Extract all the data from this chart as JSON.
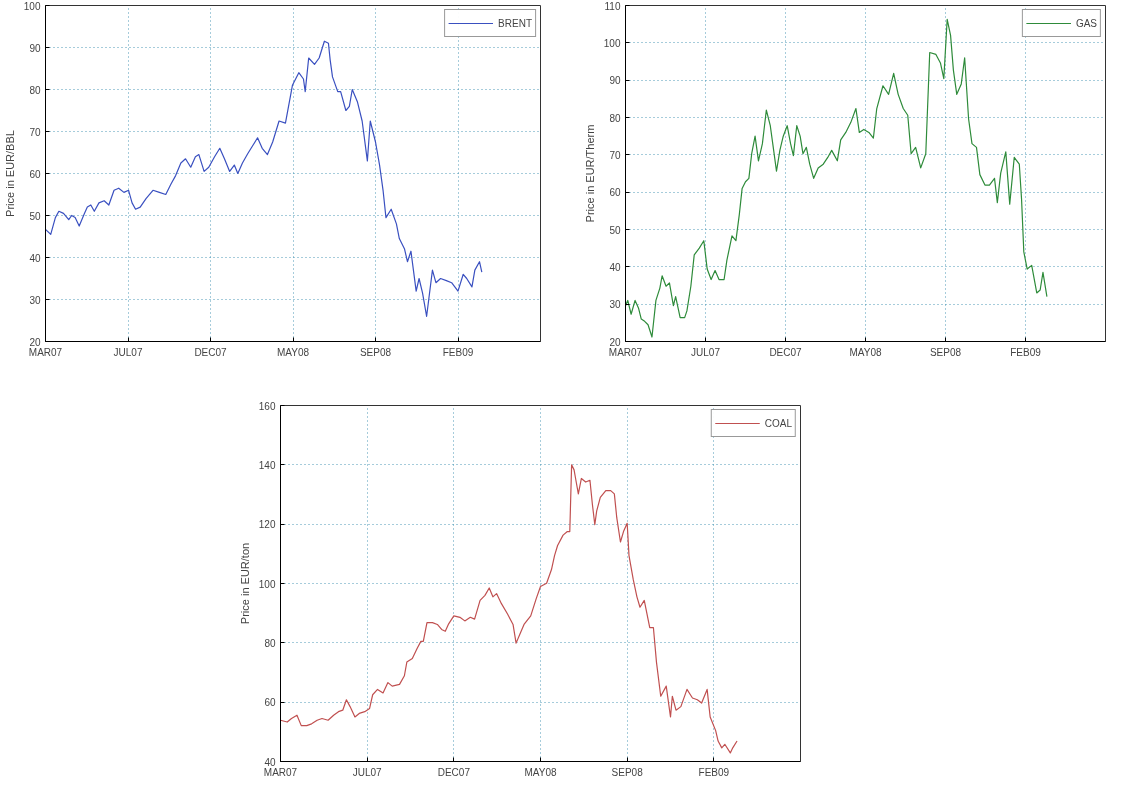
{
  "chart_data": [
    {
      "type": "line",
      "ylabel": "Price in EUR/BBL",
      "xlim": [
        "2007-03-10",
        "2009-07-09"
      ],
      "ylim": [
        20,
        100
      ],
      "grid": true,
      "legend": "top right",
      "xticks": [
        {
          "value": "2007-03-10",
          "label": "MAR07"
        },
        {
          "value": "2007-07-30",
          "label": "JUL07"
        },
        {
          "value": "2007-12-19",
          "label": "DEC07"
        },
        {
          "value": "2008-05-09",
          "label": "MAY08"
        },
        {
          "value": "2008-09-28",
          "label": "SEP08"
        },
        {
          "value": "2009-02-17",
          "label": "FEB09"
        }
      ],
      "yticks": [
        20,
        30,
        40,
        50,
        60,
        70,
        80,
        90,
        100
      ],
      "x": [
        "2007-03-10",
        "2007-03-19",
        "2007-03-27",
        "2007-04-02",
        "2007-04-10",
        "2007-04-19",
        "2007-04-24",
        "2007-04-30",
        "2007-05-07",
        "2007-05-16",
        "2007-05-21",
        "2007-05-27",
        "2007-06-02",
        "2007-06-10",
        "2007-06-19",
        "2007-06-27",
        "2007-07-06",
        "2007-07-14",
        "2007-07-23",
        "2007-07-31",
        "2007-08-06",
        "2007-08-12",
        "2007-08-20",
        "2007-08-30",
        "2007-09-11",
        "2007-09-22",
        "2007-10-03",
        "2007-10-12",
        "2007-10-20",
        "2007-10-29",
        "2007-11-06",
        "2007-11-15",
        "2007-11-23",
        "2007-11-29",
        "2007-12-08",
        "2007-12-16",
        "2007-12-26",
        "2008-01-04",
        "2008-01-12",
        "2008-01-21",
        "2008-01-29",
        "2008-02-04",
        "2008-02-12",
        "2008-02-21",
        "2008-02-29",
        "2008-03-09",
        "2008-03-17",
        "2008-03-26",
        "2008-04-04",
        "2008-04-15",
        "2008-04-26",
        "2008-05-08",
        "2008-05-19",
        "2008-05-27",
        "2008-05-30",
        "2008-06-05",
        "2008-06-15",
        "2008-06-23",
        "2008-07-02",
        "2008-07-09",
        "2008-07-12",
        "2008-07-16",
        "2008-07-25",
        "2008-07-30",
        "2008-08-08",
        "2008-08-14",
        "2008-08-19",
        "2008-08-28",
        "2008-09-05",
        "2008-09-14",
        "2008-09-19",
        "2008-09-28",
        "2008-10-05",
        "2008-10-11",
        "2008-10-16",
        "2008-10-25",
        "2008-11-03",
        "2008-11-08",
        "2008-11-17",
        "2008-11-22",
        "2008-11-28",
        "2008-12-07",
        "2008-12-12",
        "2008-12-18",
        "2008-12-25",
        "2009-01-04",
        "2009-01-10",
        "2009-01-18",
        "2009-01-28",
        "2009-02-06",
        "2009-02-17",
        "2009-02-26",
        "2009-03-04",
        "2009-03-13",
        "2009-03-18",
        "2009-03-26",
        "2009-03-30"
      ],
      "series": [
        {
          "name": "BRENT",
          "color": "#3a50c0",
          "values": [
            46.7,
            45.5,
            49.5,
            51,
            50.5,
            49,
            50,
            49.5,
            47.5,
            50.5,
            52,
            52.5,
            51,
            53,
            53.5,
            52.5,
            56,
            56.5,
            55.5,
            56,
            53,
            51.5,
            52,
            54,
            56,
            55.5,
            55,
            57.5,
            59.5,
            62.5,
            63.5,
            61.5,
            64,
            64.5,
            60.5,
            61.5,
            64,
            66,
            63.5,
            60.5,
            62,
            60,
            62.5,
            64.7,
            66.5,
            68.5,
            66,
            64.5,
            67.5,
            72.5,
            72,
            81,
            84,
            82.5,
            79.5,
            87.5,
            86,
            87.5,
            91.5,
            91,
            87,
            83,
            79.5,
            79.5,
            75,
            76,
            80,
            77,
            72.5,
            63,
            72.5,
            67.5,
            62,
            56,
            49.5,
            51.5,
            48,
            44.5,
            42,
            39,
            41.5,
            32,
            35,
            31.5,
            26,
            37,
            34,
            35,
            34.5,
            34,
            32,
            36,
            35,
            33,
            37,
            39,
            36.5
          ]
        }
      ]
    },
    {
      "type": "line",
      "ylabel": "Price in EUR/Therm",
      "xlim": [
        "2007-03-10",
        "2009-07-09"
      ],
      "ylim": [
        20,
        110
      ],
      "grid": true,
      "legend": "top right",
      "xticks": [
        {
          "value": "2007-03-10",
          "label": "MAR07"
        },
        {
          "value": "2007-07-30",
          "label": "JUL07"
        },
        {
          "value": "2007-12-19",
          "label": "DEC07"
        },
        {
          "value": "2008-05-09",
          "label": "MAY08"
        },
        {
          "value": "2008-09-28",
          "label": "SEP08"
        },
        {
          "value": "2009-02-17",
          "label": "FEB09"
        }
      ],
      "yticks": [
        20,
        30,
        40,
        50,
        60,
        70,
        80,
        90,
        100,
        110
      ],
      "x": [
        "2007-03-10",
        "2007-03-14",
        "2007-03-20",
        "2007-03-27",
        "2007-04-02",
        "2007-04-07",
        "2007-04-13",
        "2007-04-19",
        "2007-04-26",
        "2007-05-03",
        "2007-05-10",
        "2007-05-14",
        "2007-05-21",
        "2007-05-27",
        "2007-06-03",
        "2007-06-07",
        "2007-06-15",
        "2007-06-23",
        "2007-06-27",
        "2007-07-04",
        "2007-07-10",
        "2007-07-19",
        "2007-07-27",
        "2007-08-02",
        "2007-08-09",
        "2007-08-16",
        "2007-08-23",
        "2007-09-01",
        "2007-09-06",
        "2007-09-15",
        "2007-09-22",
        "2007-09-28",
        "2007-10-03",
        "2007-10-09",
        "2007-10-15",
        "2007-10-20",
        "2007-10-26",
        "2007-11-01",
        "2007-11-08",
        "2007-11-15",
        "2007-11-22",
        "2007-11-28",
        "2007-12-03",
        "2007-12-09",
        "2007-12-15",
        "2007-12-22",
        "2007-12-28",
        "2008-01-02",
        "2008-01-08",
        "2008-01-14",
        "2008-01-19",
        "2008-01-25",
        "2008-01-31",
        "2008-02-07",
        "2008-02-15",
        "2008-02-24",
        "2008-03-03",
        "2008-03-10",
        "2008-03-20",
        "2008-03-26",
        "2008-04-04",
        "2008-04-13",
        "2008-04-22",
        "2008-04-28",
        "2008-05-06",
        "2008-05-15",
        "2008-05-23",
        "2008-05-29",
        "2008-06-09",
        "2008-06-19",
        "2008-06-28",
        "2008-07-06",
        "2008-07-15",
        "2008-07-23",
        "2008-07-29",
        "2008-08-06",
        "2008-08-15",
        "2008-08-24",
        "2008-08-31",
        "2008-09-11",
        "2008-09-19",
        "2008-09-25",
        "2008-10-01",
        "2008-10-07",
        "2008-10-12",
        "2008-10-18",
        "2008-10-26",
        "2008-11-01",
        "2008-11-08",
        "2008-11-14",
        "2008-11-22",
        "2008-11-28",
        "2008-12-07",
        "2008-12-15",
        "2008-12-24",
        "2008-12-29",
        "2009-01-04",
        "2009-01-13",
        "2009-01-20",
        "2009-01-28",
        "2009-02-06",
        "2009-02-10",
        "2009-02-14",
        "2009-02-20",
        "2009-02-28",
        "2009-03-09",
        "2009-03-15",
        "2009-03-20",
        "2009-03-27"
      ],
      "series": [
        {
          "name": "GAS",
          "color": "#2e8b3a",
          "values": [
            29.6,
            31,
            27.3,
            31,
            29,
            26,
            25.4,
            24.5,
            21.2,
            31,
            34.3,
            37.6,
            34.8,
            35.7,
            29.6,
            32,
            26.4,
            26.4,
            28.2,
            34.8,
            43.2,
            45,
            47,
            39.4,
            36.6,
            39,
            36.6,
            36.6,
            41.8,
            48.3,
            47,
            54,
            61,
            62.8,
            63.7,
            70.3,
            75,
            68.4,
            73,
            82,
            77.8,
            71.2,
            65.6,
            71.2,
            75,
            77.8,
            73,
            69.8,
            77.8,
            75,
            70.3,
            72,
            67.5,
            63.7,
            66.5,
            67.5,
            69.3,
            71.2,
            68.4,
            74,
            76,
            78.7,
            82.4,
            76,
            76.8,
            76,
            74.5,
            82.4,
            88.5,
            86.2,
            91.8,
            86.2,
            82.4,
            80.6,
            70.3,
            72,
            66.5,
            70.3,
            97.4,
            96.9,
            94.6,
            90.4,
            106.3,
            102,
            92.7,
            86.2,
            89,
            96,
            79.6,
            73,
            72,
            64.7,
            61.9,
            61.9,
            63.7,
            57.2,
            65.1,
            70.8,
            56.8,
            69.3,
            67.5,
            58.1,
            44,
            39.4,
            40.4,
            33,
            33.8,
            38.5,
            32
          ]
        }
      ]
    },
    {
      "type": "line",
      "ylabel": "Price in EUR/ton",
      "xlim": [
        "2007-03-10",
        "2009-07-09"
      ],
      "ylim": [
        40,
        160
      ],
      "grid": true,
      "legend": "top right",
      "xticks": [
        {
          "value": "2007-03-10",
          "label": "MAR07"
        },
        {
          "value": "2007-07-30",
          "label": "JUL07"
        },
        {
          "value": "2007-12-19",
          "label": "DEC07"
        },
        {
          "value": "2008-05-09",
          "label": "MAY08"
        },
        {
          "value": "2008-09-28",
          "label": "SEP08"
        },
        {
          "value": "2009-02-17",
          "label": "FEB09"
        }
      ],
      "yticks": [
        40,
        60,
        80,
        100,
        120,
        140,
        160
      ],
      "x": [
        "2007-03-10",
        "2007-03-21",
        "2007-03-28",
        "2007-04-06",
        "2007-04-13",
        "2007-04-22",
        "2007-04-30",
        "2007-05-09",
        "2007-05-17",
        "2007-05-27",
        "2007-06-05",
        "2007-06-13",
        "2007-06-20",
        "2007-06-26",
        "2007-07-02",
        "2007-07-10",
        "2007-07-17",
        "2007-07-26",
        "2007-08-03",
        "2007-08-08",
        "2007-08-16",
        "2007-08-25",
        "2007-09-02",
        "2007-09-09",
        "2007-09-21",
        "2007-09-29",
        "2007-10-03",
        "2007-10-12",
        "2007-10-20",
        "2007-10-26",
        "2007-10-30",
        "2007-11-05",
        "2007-11-14",
        "2007-11-22",
        "2007-11-29",
        "2007-12-05",
        "2007-12-10",
        "2007-12-19",
        "2007-12-29",
        "2008-01-06",
        "2008-01-15",
        "2008-01-22",
        "2008-01-31",
        "2008-02-08",
        "2008-02-15",
        "2008-02-21",
        "2008-02-27",
        "2008-03-06",
        "2008-03-16",
        "2008-03-25",
        "2008-03-30",
        "2008-04-05",
        "2008-04-12",
        "2008-04-23",
        "2008-05-02",
        "2008-05-09",
        "2008-05-19",
        "2008-05-27",
        "2008-06-01",
        "2008-06-06",
        "2008-06-15",
        "2008-06-22",
        "2008-06-26",
        "2008-06-29",
        "2008-07-03",
        "2008-07-06",
        "2008-07-10",
        "2008-07-15",
        "2008-07-22",
        "2008-07-29",
        "2008-08-02",
        "2008-08-06",
        "2008-08-09",
        "2008-08-15",
        "2008-08-24",
        "2008-09-01",
        "2008-09-07",
        "2008-09-11",
        "2008-09-17",
        "2008-09-22",
        "2008-09-28",
        "2008-10-01",
        "2008-10-08",
        "2008-10-14",
        "2008-10-19",
        "2008-10-26",
        "2008-11-04",
        "2008-11-10",
        "2008-11-15",
        "2008-11-22",
        "2008-12-01",
        "2008-12-08",
        "2008-12-11",
        "2008-12-17",
        "2008-12-25",
        "2009-01-04",
        "2009-01-13",
        "2009-01-21",
        "2009-01-28",
        "2009-02-06",
        "2009-02-11",
        "2009-02-20",
        "2009-02-24",
        "2009-03-02",
        "2009-03-07",
        "2009-03-16",
        "2009-03-20",
        "2009-03-27"
      ],
      "series": [
        {
          "name": "COAL",
          "color": "#c05050",
          "values": [
            53.9,
            53.3,
            54.5,
            55.6,
            52.1,
            52.1,
            52.7,
            53.9,
            54.5,
            53.9,
            55.6,
            56.8,
            57.3,
            60.8,
            58.5,
            55,
            56.2,
            56.8,
            57.9,
            62.5,
            64.3,
            63.1,
            66.6,
            65.4,
            66,
            68.9,
            73.5,
            74.7,
            78.2,
            80.5,
            80.5,
            86.8,
            86.8,
            86.2,
            84.5,
            83.9,
            86.2,
            89.1,
            88.6,
            87.4,
            88.6,
            88,
            94.3,
            96,
            98.5,
            95.5,
            96.6,
            93.2,
            89.7,
            86.2,
            79.9,
            82.8,
            86.2,
            89.1,
            94.9,
            99,
            100.1,
            104.7,
            109.4,
            112.8,
            116.3,
            117.5,
            117.5,
            140,
            138.3,
            134.8,
            130.2,
            135.4,
            134.2,
            134.8,
            126.7,
            119.8,
            124.4,
            129,
            131.3,
            131.3,
            130.2,
            122.1,
            114,
            117.5,
            120.3,
            109.4,
            101.3,
            95.5,
            92,
            94.3,
            85.1,
            85.1,
            73.5,
            62,
            65.4,
            55,
            62,
            57.3,
            58.5,
            64.3,
            61.4,
            60.8,
            59.7,
            64.3,
            55,
            50.4,
            46.9,
            44.6,
            45.8,
            42.9,
            44.6,
            46.9
          ]
        }
      ]
    }
  ]
}
